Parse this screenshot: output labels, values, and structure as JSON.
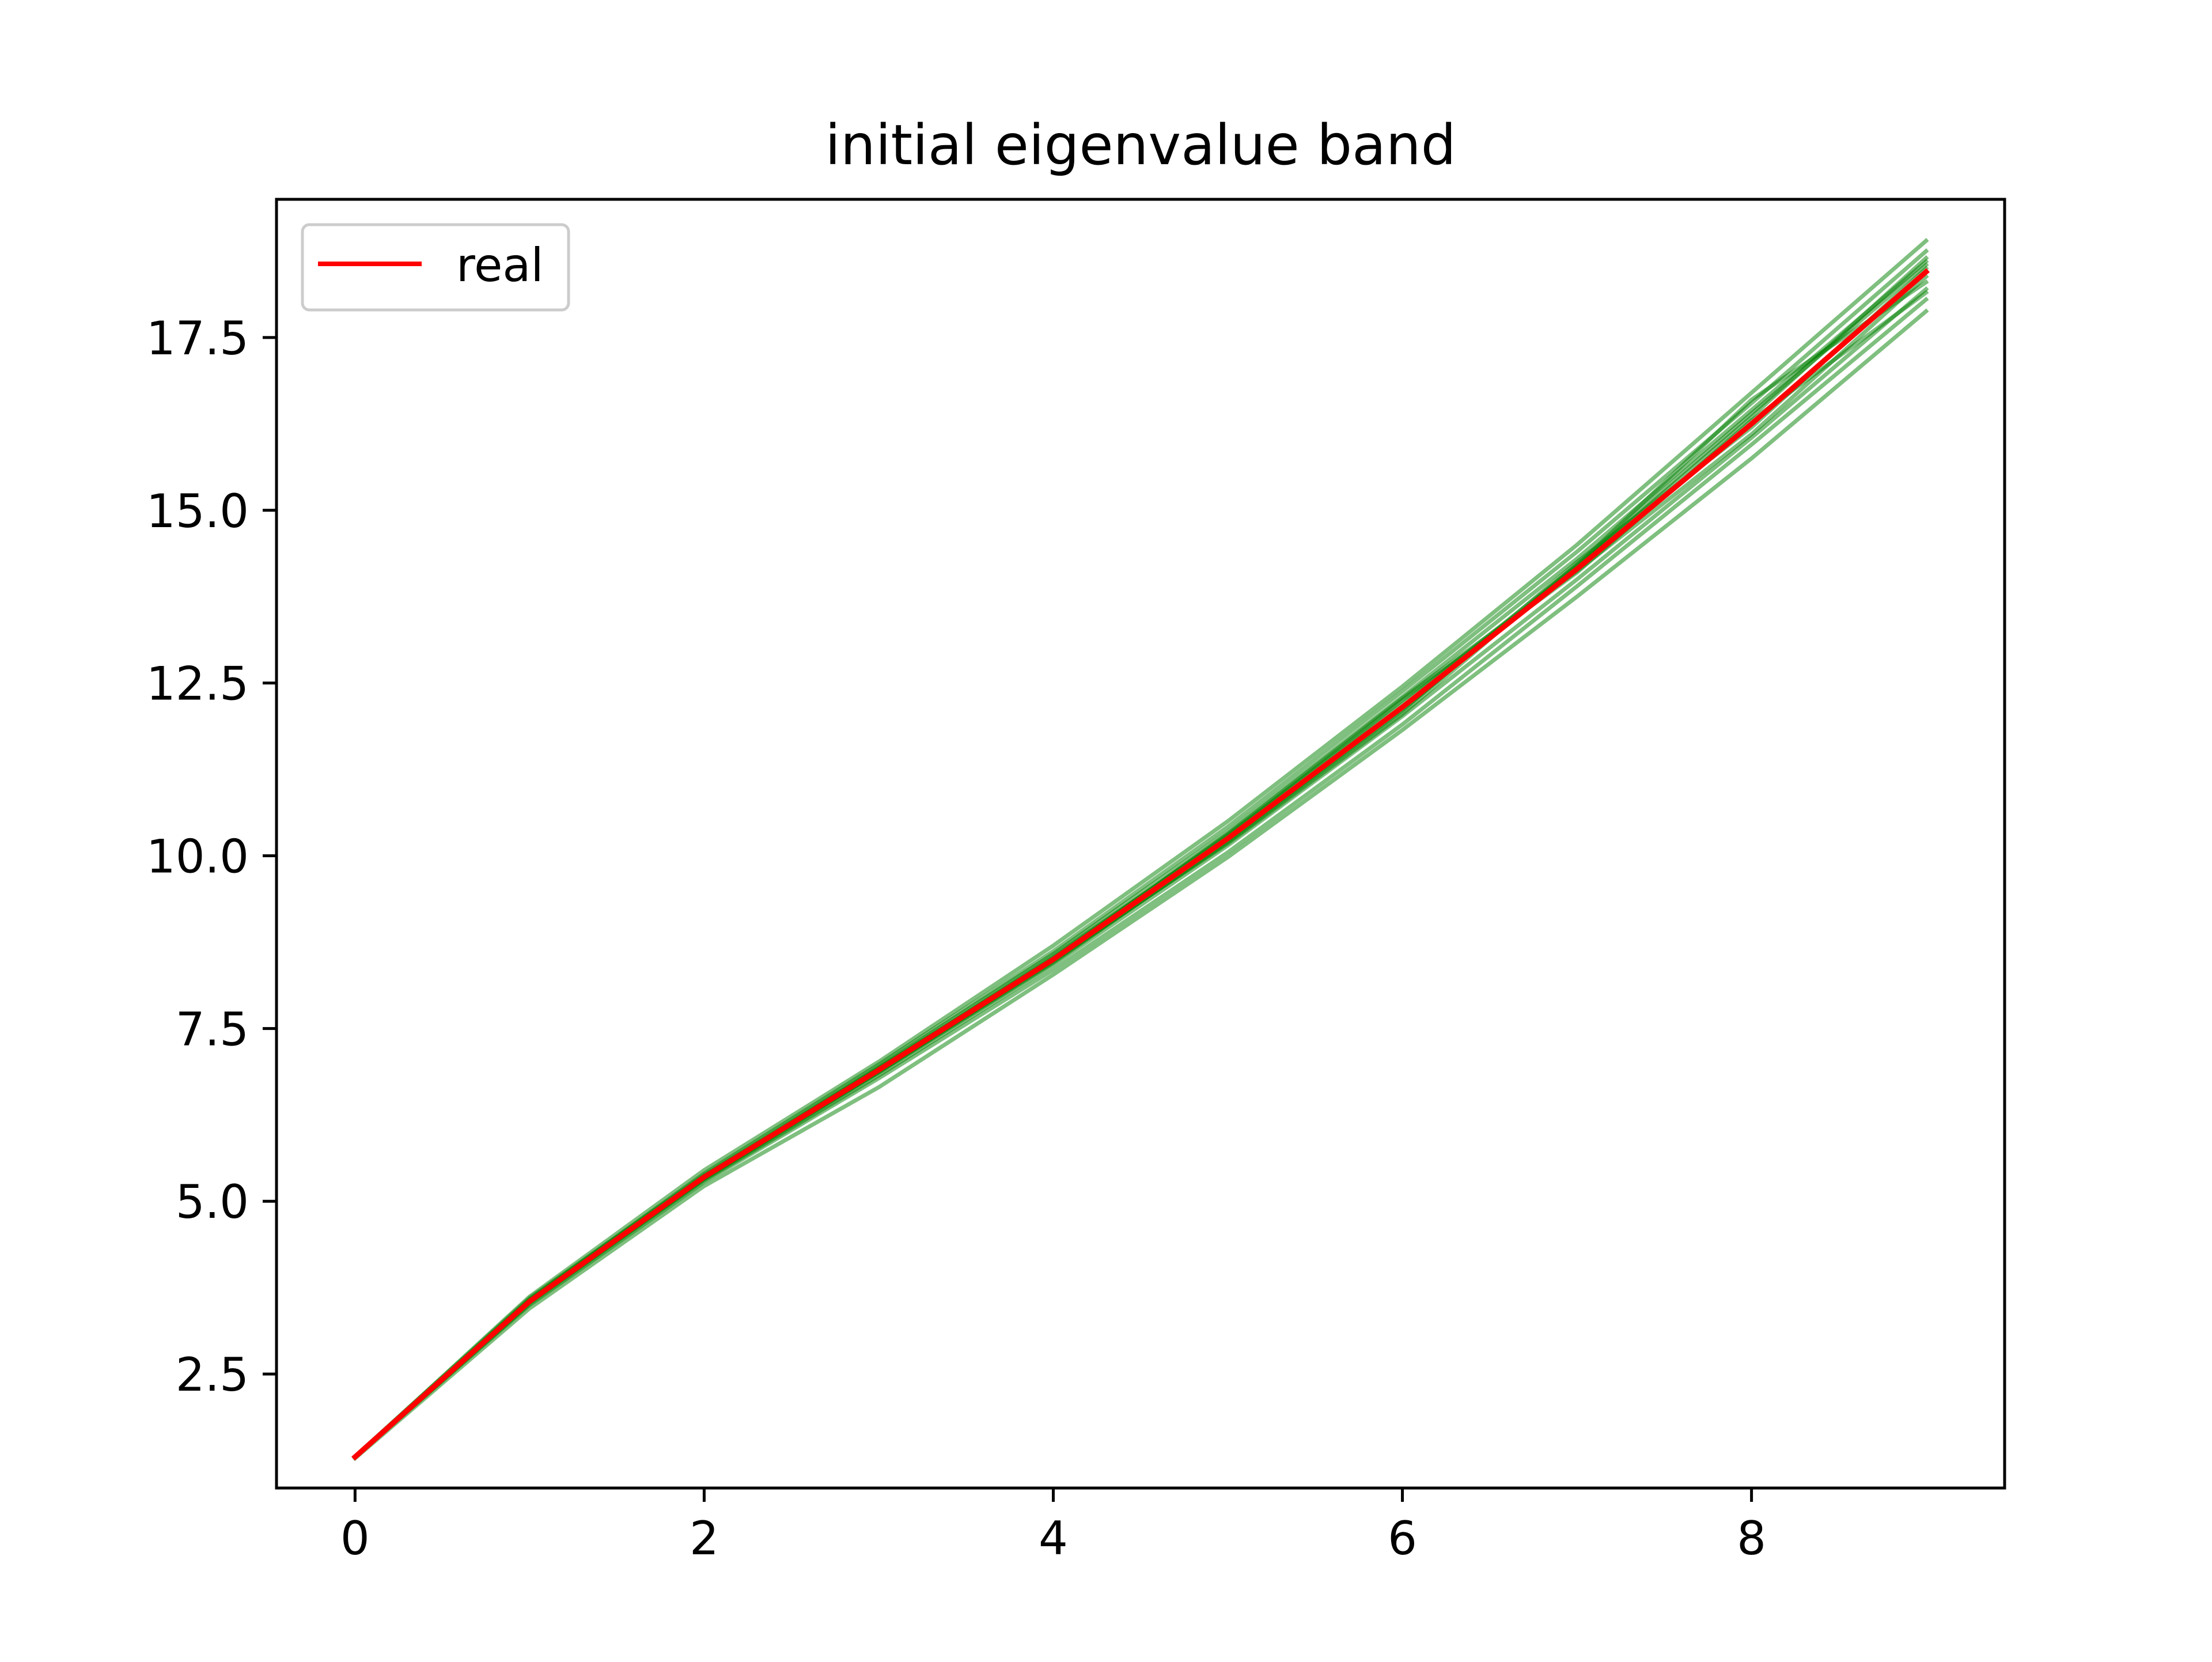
{
  "chart_data": {
    "type": "line",
    "title": "initial eigenvalue band",
    "xlabel": "",
    "ylabel": "",
    "xlim": [
      -0.45,
      9.45
    ],
    "ylim": [
      0.85,
      19.5
    ],
    "x_ticks": [
      0,
      2,
      4,
      6,
      8
    ],
    "x_tick_labels": [
      "0",
      "2",
      "4",
      "6",
      "8"
    ],
    "y_ticks": [
      2.5,
      5.0,
      7.5,
      10.0,
      12.5,
      15.0,
      17.5
    ],
    "y_tick_labels": [
      "2.5",
      "5.0",
      "7.5",
      "10.0",
      "12.5",
      "15.0",
      "17.5"
    ],
    "grid": false,
    "legend": {
      "position": "top-left",
      "entries": [
        "real"
      ]
    },
    "x": [
      0,
      1,
      2,
      3,
      4,
      5,
      6,
      7,
      8,
      9
    ],
    "series": [
      {
        "name": "real",
        "role": "real",
        "color": "#ff0000",
        "values": [
          1.3,
          3.55,
          5.35,
          6.9,
          8.5,
          10.25,
          12.15,
          14.15,
          16.25,
          18.45
        ]
      },
      {
        "role": "band",
        "color": "#008000",
        "values": [
          1.3,
          3.62,
          5.45,
          7.02,
          8.7,
          10.5,
          12.45,
          14.5,
          16.7,
          18.9
        ]
      },
      {
        "role": "band",
        "color": "#008000",
        "values": [
          1.28,
          3.45,
          5.22,
          6.65,
          8.28,
          9.98,
          11.82,
          13.75,
          15.75,
          17.88
        ]
      },
      {
        "role": "band",
        "color": "#008000",
        "values": [
          1.3,
          3.58,
          5.4,
          6.98,
          8.62,
          10.42,
          12.38,
          14.4,
          16.55,
          18.75
        ]
      },
      {
        "role": "band",
        "color": "#008000",
        "values": [
          1.3,
          3.5,
          5.28,
          6.78,
          8.35,
          10.05,
          11.9,
          13.9,
          15.95,
          18.05
        ]
      },
      {
        "role": "band",
        "color": "#008000",
        "values": [
          1.31,
          3.6,
          5.38,
          6.95,
          8.58,
          10.35,
          12.3,
          14.3,
          16.45,
          18.6
        ]
      },
      {
        "role": "band",
        "color": "#008000",
        "values": [
          1.29,
          3.52,
          5.3,
          6.82,
          8.42,
          10.15,
          12.02,
          14.0,
          16.05,
          18.2
        ]
      },
      {
        "role": "band",
        "color": "#008000",
        "values": [
          1.3,
          3.56,
          5.36,
          6.92,
          8.52,
          10.3,
          12.2,
          14.2,
          16.6,
          18.3
        ]
      },
      {
        "role": "band",
        "color": "#008000",
        "values": [
          1.3,
          3.54,
          5.33,
          6.88,
          8.47,
          10.2,
          12.1,
          14.25,
          16.2,
          18.5
        ]
      },
      {
        "role": "band",
        "color": "#008000",
        "values": [
          1.3,
          3.57,
          5.37,
          6.9,
          8.55,
          10.28,
          12.25,
          14.1,
          16.3,
          18.15
        ]
      },
      {
        "role": "band",
        "color": "#008000",
        "values": [
          1.3,
          3.53,
          5.32,
          6.86,
          8.45,
          10.22,
          12.12,
          14.18,
          16.35,
          18.65
        ]
      },
      {
        "role": "band",
        "color": "#008000",
        "values": [
          1.3,
          3.55,
          5.35,
          6.93,
          8.5,
          10.32,
          12.28,
          14.12,
          16.1,
          18.38
        ]
      },
      {
        "role": "band",
        "color": "#008000",
        "values": [
          1.3,
          3.54,
          5.34,
          6.87,
          8.49,
          10.18,
          12.05,
          14.22,
          16.4,
          18.55
        ]
      }
    ]
  }
}
